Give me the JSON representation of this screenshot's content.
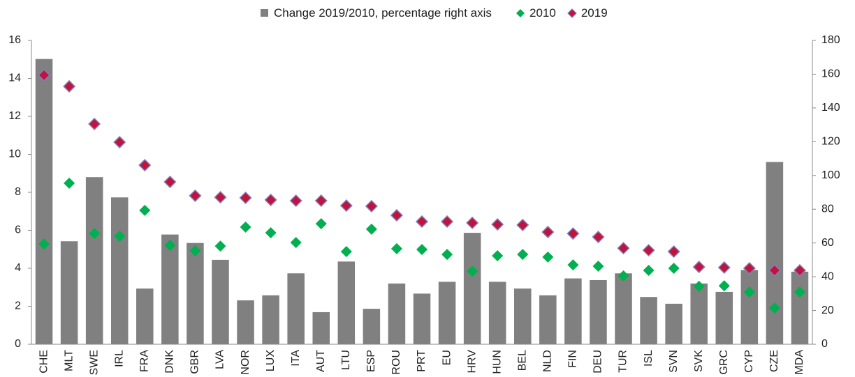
{
  "chart_data": {
    "type": "bar-scatter",
    "categories": [
      "CHE",
      "MLT",
      "SWE",
      "IRL",
      "FRA",
      "DNK",
      "GBR",
      "LVA",
      "NOR",
      "LUX",
      "ITA",
      "AUT",
      "LTU",
      "ESP",
      "ROU",
      "PRT",
      "EU",
      "HRV",
      "HUN",
      "BEL",
      "NLD",
      "FIN",
      "DEU",
      "TUR",
      "ISL",
      "SVN",
      "SVK",
      "GRC",
      "CYP",
      "CZE",
      "MDA"
    ],
    "series": [
      {
        "name": "Change 2019/2010, percentage right axis",
        "type": "bar",
        "axis": "y2",
        "color": "#808080",
        "values": [
          169,
          61,
          99,
          87,
          33,
          65,
          60,
          50,
          26,
          29,
          42,
          19,
          49,
          21,
          36,
          30,
          37,
          66,
          37,
          33,
          29,
          39,
          38,
          42,
          28,
          24,
          36,
          31,
          44,
          108,
          43
        ]
      },
      {
        "name": "2010",
        "type": "scatter",
        "color": "#00b050",
        "values": [
          5.28,
          8.48,
          5.83,
          5.69,
          7.05,
          5.21,
          4.92,
          5.17,
          6.17,
          5.87,
          5.36,
          6.35,
          4.88,
          6.06,
          5.03,
          4.99,
          4.73,
          3.85,
          4.66,
          4.73,
          4.59,
          4.18,
          4.11,
          3.6,
          3.89,
          4.0,
          3.05,
          3.08,
          2.75,
          1.91,
          2.75
        ]
      },
      {
        "name": "2019",
        "type": "scatter",
        "color": "#c0143c",
        "edgecolor": "#8080c0",
        "values": [
          14.17,
          13.58,
          11.6,
          10.64,
          9.43,
          8.55,
          7.82,
          7.74,
          7.71,
          7.6,
          7.56,
          7.56,
          7.3,
          7.27,
          6.79,
          6.46,
          6.46,
          6.39,
          6.31,
          6.28,
          5.91,
          5.83,
          5.65,
          5.06,
          4.95,
          4.88,
          4.07,
          4.04,
          4.0,
          3.89,
          3.89
        ]
      }
    ],
    "ylim": [
      0,
      16
    ],
    "yticks": [
      0,
      2,
      4,
      6,
      8,
      10,
      12,
      14,
      16
    ],
    "y2lim": [
      0,
      180
    ],
    "y2ticks": [
      0,
      20,
      40,
      60,
      80,
      100,
      120,
      140,
      160,
      180
    ]
  }
}
